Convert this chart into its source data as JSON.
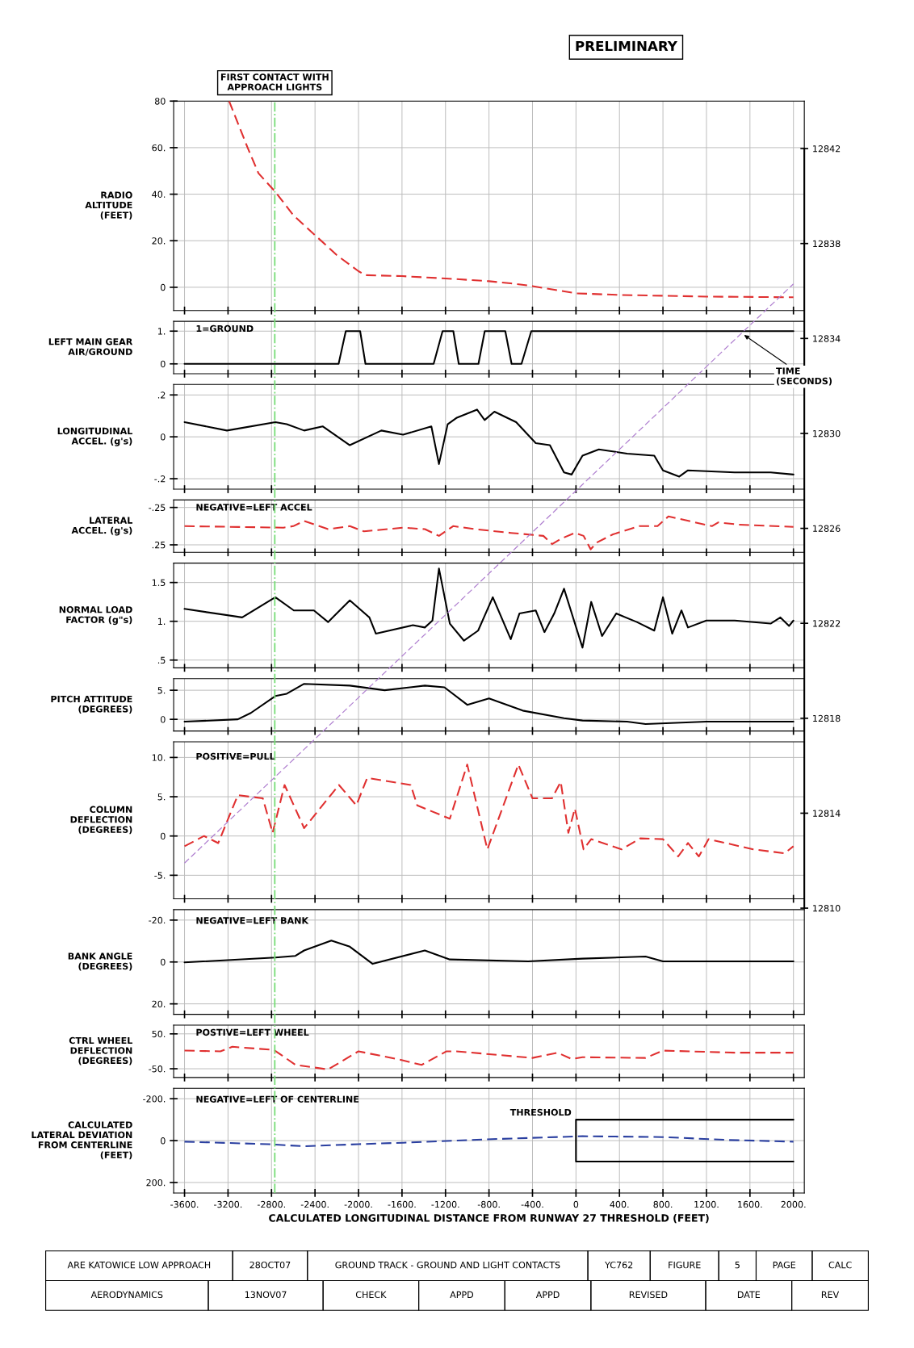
{
  "chart_data": [
    {
      "type": "line",
      "ylabel": "RADIO\nALTITUDE\n(FEET)",
      "xlim": [
        -3700,
        2100
      ],
      "xticks": [
        -3600,
        -3200,
        -2800,
        -2400,
        -2000,
        -1600,
        -1200,
        -800,
        -400,
        0,
        400,
        800,
        1200,
        1600,
        2000
      ],
      "tick_labels": "y",
      "grid": true,
      "ylim": [
        -10,
        80
      ],
      "yticks": [
        {
          "value": 80,
          "label": "80"
        },
        {
          "value": 60,
          "label": "60."
        },
        {
          "value": 40,
          "label": "40."
        },
        {
          "value": 20,
          "label": "20."
        },
        0
      ],
      "series": [
        {
          "color": "#e03030",
          "line_style": "dashed",
          "x": [
            -3190,
            -3020,
            -2920,
            -2765,
            -2600,
            -2400,
            -2200,
            -2000,
            -1935,
            -1600,
            -1200,
            -800,
            -600,
            -400,
            0,
            400,
            1200,
            2000
          ],
          "values": [
            80,
            60,
            49,
            41,
            31,
            22.4,
            13.8,
            6.9,
            5.2,
            4.8,
            3.8,
            2.6,
            1.7,
            0.5,
            -2.6,
            -3.3,
            -4,
            -4.3
          ]
        }
      ]
    },
    {
      "type": "line",
      "ylabel": "LEFT MAIN GEAR\nAIR/GROUND",
      "xlim": [
        -3700,
        2100
      ],
      "xticks": [
        -3600,
        -3200,
        -2800,
        -2400,
        -2000,
        -1600,
        -1200,
        -800,
        -400,
        0,
        400,
        800,
        1200,
        1600,
        2000
      ],
      "tick_labels": "y",
      "grid": true,
      "ylim": [
        -0.3,
        1.3
      ],
      "yticks": [
        {
          "value": 1,
          "label": "1."
        },
        0
      ],
      "annotations": [
        "1=GROUND"
      ],
      "series": [
        {
          "color": "#000000",
          "line_style": "solid",
          "x": [
            -3600,
            -2183,
            -2117,
            -1985,
            -1936,
            -1309,
            -1227,
            -1128,
            -1078,
            -897,
            -839,
            -650,
            -592,
            -501,
            -411,
            2000
          ],
          "values": [
            0,
            0,
            1,
            1,
            0,
            0,
            1,
            1,
            0,
            0,
            1,
            1,
            0,
            0,
            1,
            1
          ]
        }
      ]
    },
    {
      "type": "line",
      "ylabel": "LONGITUDINAL\nACCEL. (g's)",
      "xlim": [
        -3700,
        2100
      ],
      "xticks": [
        -3600,
        -3200,
        -2800,
        -2400,
        -2000,
        -1600,
        -1200,
        -800,
        -400,
        0,
        400,
        800,
        1200,
        1600,
        2000
      ],
      "tick_labels": "y",
      "grid": true,
      "ylim": [
        -0.25,
        0.25
      ],
      "yticks": [
        {
          "value": 0.2,
          "label": ".2"
        },
        0,
        {
          "value": -0.2,
          "label": "-.2"
        }
      ],
      "series": [
        {
          "color": "#000000",
          "line_style": "solid",
          "x": [
            -3600,
            -3210,
            -2765,
            -2660,
            -2500,
            -2330,
            -2080,
            -1790,
            -1590,
            -1330,
            -1260,
            -1180,
            -1100,
            -910,
            -840,
            -750,
            -550,
            -370,
            -240,
            -110,
            -40,
            60,
            210,
            470,
            720,
            800,
            950,
            1030,
            1460,
            1790,
            2000
          ],
          "values": [
            0.07,
            0.03,
            0.07,
            0.06,
            0.03,
            0.05,
            -0.04,
            0.03,
            0.01,
            0.05,
            -0.13,
            0.06,
            0.09,
            0.13,
            0.08,
            0.12,
            0.07,
            -0.03,
            -0.04,
            -0.17,
            -0.18,
            -0.09,
            -0.06,
            -0.08,
            -0.09,
            -0.16,
            -0.19,
            -0.16,
            -0.17,
            -0.17,
            -0.18
          ]
        }
      ]
    },
    {
      "type": "line",
      "ylabel": "LATERAL\nACCEL. (g's)",
      "xlim": [
        -3700,
        2100
      ],
      "xticks": [
        -3600,
        -3200,
        -2800,
        -2400,
        -2000,
        -1600,
        -1200,
        -800,
        -400,
        0,
        400,
        800,
        1200,
        1600,
        2000
      ],
      "tick_labels": "y",
      "grid": true,
      "ylim": [
        0.35,
        -0.35
      ],
      "yticks": [
        {
          "value": -0.25,
          "label": "-.25"
        },
        {
          "value": 0.25,
          "label": ".25"
        }
      ],
      "annotations": [
        "NEGATIVE=LEFT ACCEL"
      ],
      "series": [
        {
          "color": "#e03030",
          "line_style": "dashed",
          "x": [
            -3600,
            -2690,
            -2600,
            -2500,
            -2280,
            -2080,
            -1950,
            -1590,
            -1390,
            -1260,
            -1130,
            -930,
            -600,
            -300,
            -220,
            -140,
            -10,
            70,
            135,
            190,
            340,
            580,
            750,
            850,
            1250,
            1310,
            1500,
            2000
          ],
          "values": [
            0,
            0.02,
            0,
            -0.07,
            0.04,
            0,
            0.07,
            0.02,
            0.04,
            0.13,
            0,
            0.04,
            0.09,
            0.13,
            0.24,
            0.17,
            0.09,
            0.13,
            0.31,
            0.22,
            0.11,
            0,
            0,
            -0.13,
            0,
            -0.05,
            -0.02,
            0.01
          ]
        }
      ]
    },
    {
      "type": "line",
      "ylabel": "NORMAL LOAD\nFACTOR (g\"s)",
      "xlim": [
        -3700,
        2100
      ],
      "xticks": [
        -3600,
        -3200,
        -2800,
        -2400,
        -2000,
        -1600,
        -1200,
        -800,
        -400,
        0,
        400,
        800,
        1200,
        1600,
        2000
      ],
      "tick_labels": "y",
      "grid": true,
      "ylim": [
        0.4,
        1.75
      ],
      "yticks": [
        1.5,
        {
          "value": 1,
          "label": "1."
        },
        {
          "value": 0.5,
          "label": ".5"
        }
      ],
      "series": [
        {
          "color": "#000000",
          "line_style": "solid",
          "x": [
            -3600,
            -3070,
            -2765,
            -2595,
            -2410,
            -2280,
            -2080,
            -1900,
            -1840,
            -1500,
            -1390,
            -1320,
            -1260,
            -1160,
            -1030,
            -900,
            -765,
            -600,
            -520,
            -370,
            -290,
            -200,
            -110,
            60,
            140,
            240,
            370,
            560,
            720,
            800,
            885,
            970,
            1030,
            1200,
            1460,
            1790,
            1880,
            1960,
            2000
          ],
          "values": [
            1.16,
            1.05,
            1.31,
            1.14,
            1.14,
            0.99,
            1.27,
            1.05,
            0.84,
            0.95,
            0.92,
            1.01,
            1.68,
            0.97,
            0.75,
            0.88,
            1.31,
            0.77,
            1.1,
            1.14,
            0.86,
            1.1,
            1.42,
            0.66,
            1.25,
            0.81,
            1.1,
            0.99,
            0.88,
            1.31,
            0.84,
            1.14,
            0.92,
            1.01,
            1.01,
            0.97,
            1.05,
            0.94,
            1.01
          ]
        }
      ]
    },
    {
      "type": "line",
      "ylabel": "PITCH ATTITUDE\n(DEGREES)",
      "xlim": [
        -3700,
        2100
      ],
      "xticks": [
        -3600,
        -3200,
        -2800,
        -2400,
        -2000,
        -1600,
        -1200,
        -800,
        -400,
        0,
        400,
        800,
        1200,
        1600,
        2000
      ],
      "tick_labels": "y",
      "grid": true,
      "ylim": [
        -2,
        7
      ],
      "yticks": [
        {
          "value": 5,
          "label": "5."
        },
        0
      ],
      "series": [
        {
          "color": "#000000",
          "line_style": "solid",
          "x": [
            -3600,
            -3110,
            -2990,
            -2765,
            -2660,
            -2500,
            -2080,
            -1760,
            -1390,
            -1210,
            -1000,
            -800,
            -490,
            -110,
            60,
            470,
            640,
            1200,
            2000
          ],
          "values": [
            -0.4,
            0,
            1.1,
            4.0,
            4.4,
            6.1,
            5.8,
            5.0,
            5.8,
            5.5,
            2.5,
            3.6,
            1.5,
            0.2,
            -0.2,
            -0.4,
            -0.8,
            -0.4,
            -0.4
          ]
        }
      ]
    },
    {
      "type": "line",
      "ylabel": "COLUMN\nDEFLECTION\n(DEGREES)",
      "xlim": [
        -3700,
        2100
      ],
      "xticks": [
        -3600,
        -3200,
        -2800,
        -2400,
        -2000,
        -1600,
        -1200,
        -800,
        -400,
        0,
        400,
        800,
        1200,
        1600,
        2000
      ],
      "tick_labels": "y",
      "grid": true,
      "ylim": [
        -8,
        12
      ],
      "yticks": [
        {
          "value": 10,
          "label": "10."
        },
        {
          "value": 5,
          "label": "5."
        },
        0,
        {
          "value": -5,
          "label": "-5."
        }
      ],
      "annotations": [
        "POSITIVE=PULL"
      ],
      "series": [
        {
          "color": "#e03030",
          "line_style": "dashed",
          "x": [
            -3600,
            -3420,
            -3290,
            -3110,
            -2880,
            -2790,
            -2680,
            -2500,
            -2180,
            -2020,
            -1920,
            -1520,
            -1460,
            -1160,
            -1000,
            -815,
            -530,
            -400,
            -220,
            -140,
            -70,
            -10,
            70,
            140,
            420,
            590,
            800,
            940,
            1030,
            1130,
            1220,
            1630,
            1920,
            2000
          ],
          "values": [
            -1.3,
            0,
            -0.9,
            5.2,
            4.8,
            0.4,
            6.5,
            1,
            6.5,
            3.9,
            7.4,
            6.5,
            3.9,
            2.2,
            9.1,
            -1.7,
            9.1,
            4.8,
            4.8,
            6.9,
            0.4,
            3.5,
            -1.7,
            -0.4,
            -1.7,
            -0.3,
            -0.4,
            -2.6,
            -0.9,
            -2.6,
            -0.4,
            -1.7,
            -2.2,
            -1.3
          ]
        }
      ]
    },
    {
      "type": "line",
      "ylabel": "BANK ANGLE\n(DEGREES)",
      "xlim": [
        -3700,
        2100
      ],
      "xticks": [
        -3600,
        -3200,
        -2800,
        -2400,
        -2000,
        -1600,
        -1200,
        -800,
        -400,
        0,
        400,
        800,
        1200,
        1600,
        2000
      ],
      "tick_labels": "y",
      "grid": true,
      "ylim": [
        25,
        -25
      ],
      "yticks": [
        {
          "value": -20,
          "label": "-20."
        },
        0,
        {
          "value": 20,
          "label": "20."
        }
      ],
      "annotations": [
        "NEGATIVE=LEFT BANK"
      ],
      "series": [
        {
          "color": "#000000",
          "line_style": "solid",
          "x": [
            -3600,
            -2765,
            -2580,
            -2500,
            -2250,
            -2080,
            -1870,
            -1390,
            -1160,
            -440,
            60,
            640,
            800,
            2000
          ],
          "values": [
            0.2,
            -2.1,
            -2.9,
            -5.5,
            -10.2,
            -7.3,
            0.9,
            -5.5,
            -1.2,
            -0.3,
            -1.6,
            -2.6,
            -0.3,
            -0.3
          ]
        }
      ]
    },
    {
      "type": "line",
      "ylabel": "CTRL WHEEL\nDEFLECTION\n(DEGREES)",
      "xlim": [
        -3700,
        2100
      ],
      "xticks": [
        -3600,
        -3200,
        -2800,
        -2400,
        -2000,
        -1600,
        -1200,
        -800,
        -400,
        0,
        400,
        800,
        1200,
        1600,
        2000
      ],
      "tick_labels": "y",
      "grid": true,
      "ylim": [
        -75,
        75
      ],
      "yticks": [
        {
          "value": 50,
          "label": "50."
        },
        {
          "value": -50,
          "label": "-50."
        }
      ],
      "annotations": [
        "POSTIVE=LEFT WHEEL"
      ],
      "series": [
        {
          "color": "#e03030",
          "line_style": "dashed",
          "x": [
            -3600,
            -3270,
            -3160,
            -2780,
            -2680,
            -2580,
            -2280,
            -2000,
            -1590,
            -1420,
            -1190,
            -1100,
            -400,
            -170,
            -40,
            60,
            640,
            800,
            1460,
            2000
          ],
          "values": [
            2,
            0,
            13,
            4,
            -17,
            -39,
            -52,
            0,
            -26,
            -39,
            0,
            0,
            -19,
            -4,
            -22,
            -17,
            -19,
            2,
            -4,
            -4
          ]
        }
      ]
    },
    {
      "type": "line",
      "ylabel": "CALCULATED\nLATERAL DEVIATION\nFROM CENTERLINE\n(FEET)",
      "xlabel": "CALCULATED LONGITUDINAL DISTANCE FROM RUNWAY 27 THRESHOLD (FEET)",
      "xlim": [
        -3700,
        2100
      ],
      "xticks": [
        {
          "value": -3600,
          "label": "-3600."
        },
        {
          "value": -3200,
          "label": "-3200."
        },
        {
          "value": -2800,
          "label": "-2800."
        },
        {
          "value": -2400,
          "label": "-2400."
        },
        {
          "value": -2000,
          "label": "-2000."
        },
        {
          "value": -1600,
          "label": "-1600."
        },
        {
          "value": -1200,
          "label": "-1200."
        },
        {
          "value": -800,
          "label": "-800."
        },
        {
          "value": -400,
          "label": "-400."
        },
        0,
        {
          "value": 400,
          "label": "400."
        },
        {
          "value": 800,
          "label": "800."
        },
        {
          "value": 1200,
          "label": "1200."
        },
        {
          "value": 1600,
          "label": "1600."
        },
        {
          "value": 2000,
          "label": "2000."
        }
      ],
      "grid": true,
      "ylim": [
        250,
        -250
      ],
      "yticks": [
        {
          "value": -200,
          "label": "-200."
        },
        0,
        {
          "value": 200,
          "label": "200."
        }
      ],
      "annotations": [
        "NEGATIVE=LEFT OF CENTERLINE",
        {
          "text": "THRESHOLD",
          "x": 0,
          "y": -100
        }
      ],
      "series": [
        {
          "color": "#2a3fa0",
          "line_style": "dashed",
          "x": [
            -3600,
            -2830,
            -2500,
            -2000,
            -1590,
            -770,
            60,
            800,
            1400,
            2000
          ],
          "values": [
            5,
            17,
            27,
            17,
            10,
            -7,
            -21,
            -17,
            -3,
            5
          ]
        },
        {
          "color": "#000000",
          "line_style": "solid",
          "x": [
            2000,
            0,
            0,
            2000
          ],
          "values": [
            -100,
            -100,
            100,
            100
          ]
        }
      ]
    },
    {
      "type": "line",
      "title": "PRELIMINARY",
      "xlim": [
        -3700,
        2100
      ],
      "ylim": [
        12798,
        12844
      ],
      "yticks": [
        12810,
        12814,
        12818,
        12822,
        12826,
        12830,
        12834,
        12838,
        12842
      ],
      "ref_lines": [
        {
          "axis": "x",
          "value": -2770,
          "label": "FIRST CONTACT WITH\nAPPROACH LIGHTS",
          "color": "#77dd77",
          "line_style": "dashdot"
        }
      ],
      "series": [
        {
          "color": "#b080d0",
          "line_style": "dashed",
          "x": [
            -3600,
            2000
          ],
          "values": [
            12811.9,
            12836.3
          ]
        }
      ],
      "annotations": [
        {
          "text": "TIME\n(SECONDS)",
          "x": 1530,
          "y": 12834.2
        },
        "ARE KATOWICE LOW APPROACH",
        "28OCT07",
        "GROUND TRACK - GROUND AND LIGHT CONTACTS",
        "YC762",
        "FIGURE",
        "5",
        "PAGE",
        "CALC",
        "AERODYNAMICS",
        "13NOV07",
        "CHECK",
        "APPD",
        "APPD",
        "REVISED",
        "DATE",
        "REV"
      ]
    }
  ]
}
